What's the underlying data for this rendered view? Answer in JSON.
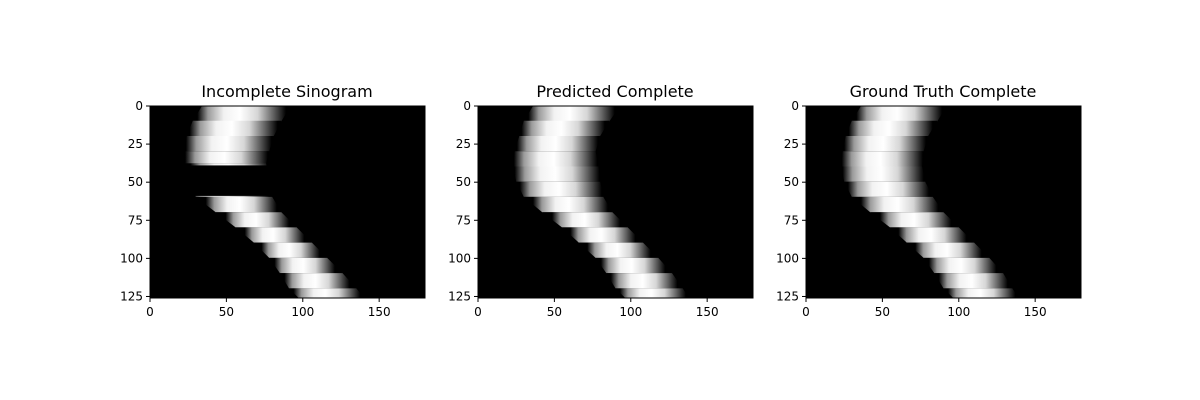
{
  "chart_data": [
    {
      "type": "heatmap",
      "title": "Incomplete Sinogram",
      "xlabel": "",
      "ylabel": "",
      "xlim": [
        0,
        180
      ],
      "ylim": [
        125,
        0
      ],
      "x_ticks": [
        0,
        50,
        100,
        150
      ],
      "y_ticks": [
        0,
        25,
        50,
        75,
        100,
        125
      ],
      "colormap": "gray",
      "grid": false,
      "band": {
        "rows": [
          0,
          10,
          20,
          30,
          38,
          60,
          70,
          80,
          90,
          100,
          110,
          120,
          126
        ],
        "left": [
          34,
          28,
          24,
          23,
          23,
          30,
          43,
          56,
          68,
          78,
          85,
          91,
          97
        ],
        "right": [
          92,
          86,
          81,
          78,
          76,
          80,
          86,
          96,
          106,
          116,
          126,
          135,
          140
        ]
      },
      "missing_rows": [
        39,
        59
      ]
    },
    {
      "type": "heatmap",
      "title": "Predicted Complete",
      "xlabel": "",
      "ylabel": "",
      "xlim": [
        0,
        180
      ],
      "ylim": [
        125,
        0
      ],
      "x_ticks": [
        0,
        50,
        100,
        150
      ],
      "y_ticks": [
        0,
        25,
        50,
        75,
        100,
        125
      ],
      "colormap": "gray",
      "grid": false,
      "band": {
        "rows": [
          0,
          10,
          20,
          30,
          40,
          50,
          60,
          70,
          80,
          90,
          100,
          110,
          120,
          126
        ],
        "left": [
          36,
          30,
          27,
          24,
          23,
          25,
          30,
          42,
          55,
          66,
          77,
          84,
          90,
          96
        ],
        "right": [
          93,
          86,
          80,
          77,
          79,
          80,
          82,
          88,
          98,
          108,
          118,
          127,
          134,
          138
        ]
      }
    },
    {
      "type": "heatmap",
      "title": "Ground Truth Complete",
      "xlabel": "",
      "ylabel": "",
      "xlim": [
        0,
        180
      ],
      "ylim": [
        125,
        0
      ],
      "x_ticks": [
        0,
        50,
        100,
        150
      ],
      "y_ticks": [
        0,
        25,
        50,
        75,
        100,
        125
      ],
      "colormap": "gray",
      "grid": false,
      "band": {
        "rows": [
          0,
          10,
          20,
          30,
          40,
          50,
          60,
          70,
          80,
          90,
          100,
          110,
          120,
          126
        ],
        "left": [
          36,
          30,
          26,
          24,
          23,
          25,
          30,
          42,
          55,
          66,
          77,
          84,
          90,
          96
        ],
        "right": [
          92,
          86,
          80,
          77,
          76,
          78,
          83,
          90,
          100,
          110,
          120,
          129,
          135,
          139
        ]
      }
    }
  ]
}
